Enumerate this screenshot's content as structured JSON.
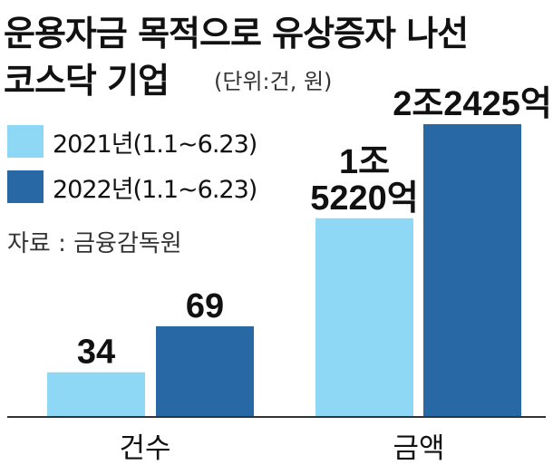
{
  "title_line1": "운용자금 목적으로 유상증자 나선",
  "title_line2": "코스닥 기업",
  "unit": "(단위:건, 원)",
  "source": "자료 : 금융감독원",
  "colors": {
    "series2021": "#8fd8f5",
    "series2022": "#2768a5",
    "axis": "#333333"
  },
  "chart_data": {
    "type": "bar",
    "categories": [
      "건수",
      "금액"
    ],
    "series": [
      {
        "name": "2021년(1.1~6.23)",
        "values": [
          34,
          15220
        ],
        "labels": [
          "34",
          "1조\n5220억"
        ]
      },
      {
        "name": "2022년(1.1~6.23)",
        "values": [
          69,
          22425
        ],
        "labels": [
          "69",
          "2조2425억"
        ]
      }
    ],
    "value_units": [
      "건",
      "억원"
    ],
    "legend": "top-left",
    "grid": false
  }
}
